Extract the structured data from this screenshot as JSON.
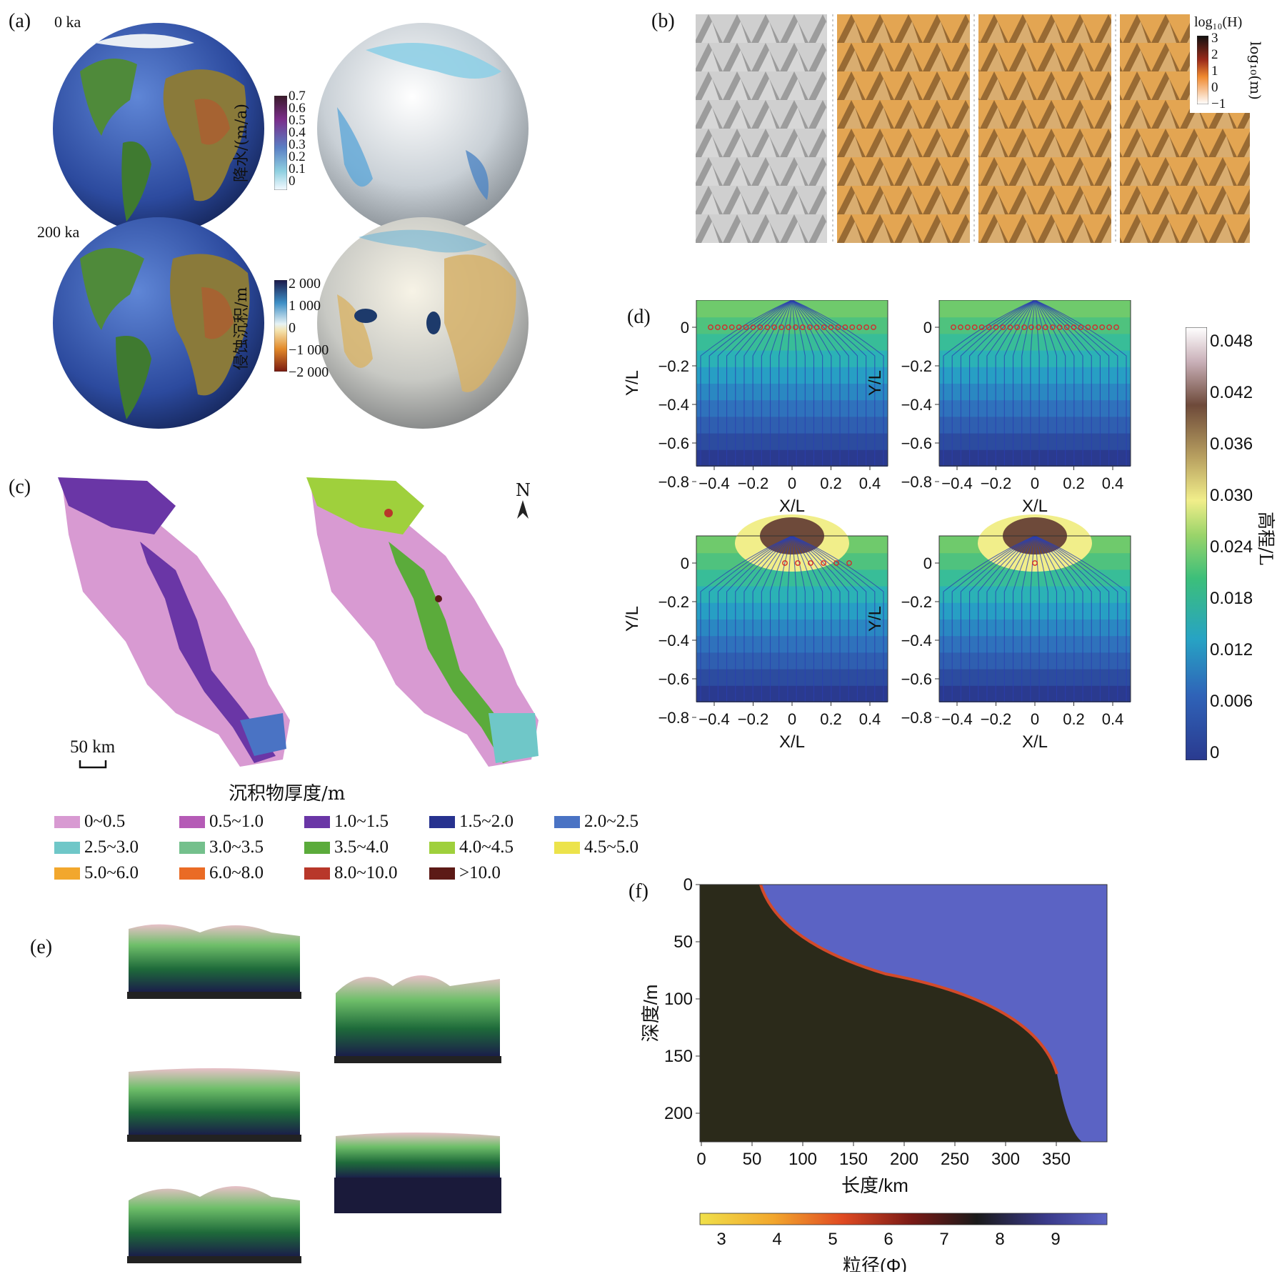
{
  "panel_a": {
    "label": "(a)",
    "time_top": "0 ka",
    "time_bottom": "200 ka",
    "precip_label": "降水/(m/a)",
    "precip_ticks": [
      "0.7",
      "0.6",
      "0.5",
      "0.4",
      "0.3",
      "0.2",
      "0.1",
      "0"
    ],
    "erosion_label": "侵蚀沉积/m",
    "erosion_ticks": [
      "2 000",
      "1 000",
      "0",
      "−1 000",
      "−2 000"
    ]
  },
  "panel_b": {
    "label": "(b)",
    "cb_title": "log₁₀(H)",
    "cb_side": "log₁₀(m)",
    "cb_ticks": [
      "3",
      "2",
      "1",
      "0",
      "−1"
    ]
  },
  "panel_c": {
    "label": "(c)",
    "north": "N",
    "scale": "50 km",
    "legend_title": "沉积物厚度/m",
    "legend": [
      {
        "label": "0~0.5",
        "color": "#d89ad2"
      },
      {
        "label": "0.5~1.0",
        "color": "#b55bb6"
      },
      {
        "label": "1.0~1.5",
        "color": "#6a36a6"
      },
      {
        "label": "1.5~2.0",
        "color": "#27328f"
      },
      {
        "label": "2.0~2.5",
        "color": "#4a73c4"
      },
      {
        "label": "2.5~3.0",
        "color": "#6fc7c8"
      },
      {
        "label": "3.0~3.5",
        "color": "#74c08c"
      },
      {
        "label": "3.5~4.0",
        "color": "#5bab3b"
      },
      {
        "label": "4.0~4.5",
        "color": "#9fd03c"
      },
      {
        "label": "4.5~5.0",
        "color": "#ece34b"
      },
      {
        "label": "5.0~6.0",
        "color": "#f2a72d"
      },
      {
        "label": "6.0~8.0",
        "color": "#ea6b25"
      },
      {
        "label": "8.0~10.0",
        "color": "#b8372a"
      },
      {
        "label": ">10.0",
        "color": "#5c1a16"
      }
    ]
  },
  "panel_d": {
    "label": "(d)",
    "xlabel": "X/L",
    "ylabel": "Y/L",
    "xticks": [
      "−0.4",
      "−0.2",
      "0",
      "0.2",
      "0.4"
    ],
    "yticks": [
      "0",
      "−0.2",
      "−0.4",
      "−0.6",
      "−0.8"
    ],
    "cb_label": "高程/L",
    "cb_ticks": [
      "0.048",
      "0.042",
      "0.036",
      "0.030",
      "0.024",
      "0.018",
      "0.012",
      "0.006",
      "0"
    ]
  },
  "panel_e": {
    "label": "(e)"
  },
  "panel_f": {
    "label": "(f)",
    "ylabel": "深度/m",
    "xlabel": "长度/km",
    "yticks": [
      "0",
      "50",
      "100",
      "150",
      "200"
    ],
    "xticks": [
      "0",
      "50",
      "100",
      "150",
      "200",
      "250",
      "300",
      "350"
    ],
    "cb_label": "粒径(Φ)",
    "cb_ticks": [
      "3",
      "4",
      "5",
      "6",
      "7",
      "8",
      "9"
    ]
  },
  "colors": {
    "ocean": "#2f4fa0",
    "land": "#4f8a3a",
    "sediment_dark": "#2b2a1a",
    "water_blue": "#5b63c4",
    "hill_orange": "#e3a552"
  }
}
